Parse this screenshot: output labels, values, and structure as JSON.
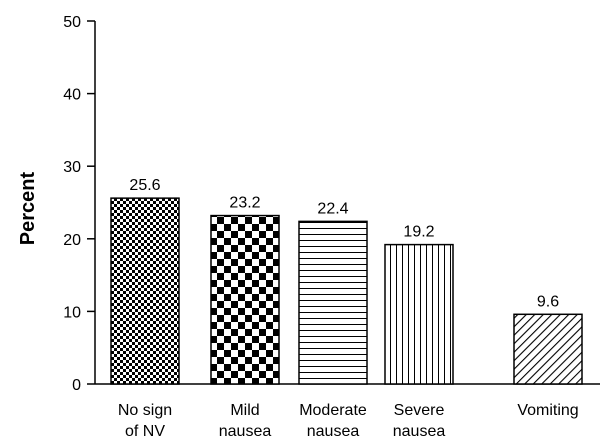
{
  "chart_data": {
    "type": "bar",
    "categories": [
      [
        "No sign",
        "of NV"
      ],
      [
        "Mild",
        "nausea"
      ],
      [
        "Moderate",
        "nausea"
      ],
      [
        "Severe",
        "nausea"
      ],
      [
        "Vomiting"
      ]
    ],
    "values": [
      25.6,
      23.2,
      22.4,
      19.2,
      9.6
    ],
    "value_labels": [
      "25.6",
      "23.2",
      "22.4",
      "19.2",
      "9.6"
    ],
    "patterns": [
      "fine-check",
      "checkerboard",
      "horizontal-lines",
      "vertical-lines",
      "diagonal-lines"
    ],
    "ylabel": "Percent",
    "xlabel": "",
    "title": "",
    "ylim": [
      0,
      50
    ],
    "yticks": [
      0,
      10,
      20,
      30,
      40,
      50
    ],
    "grid": false,
    "colors": {
      "ink": "#000000",
      "background": "#ffffff"
    }
  }
}
